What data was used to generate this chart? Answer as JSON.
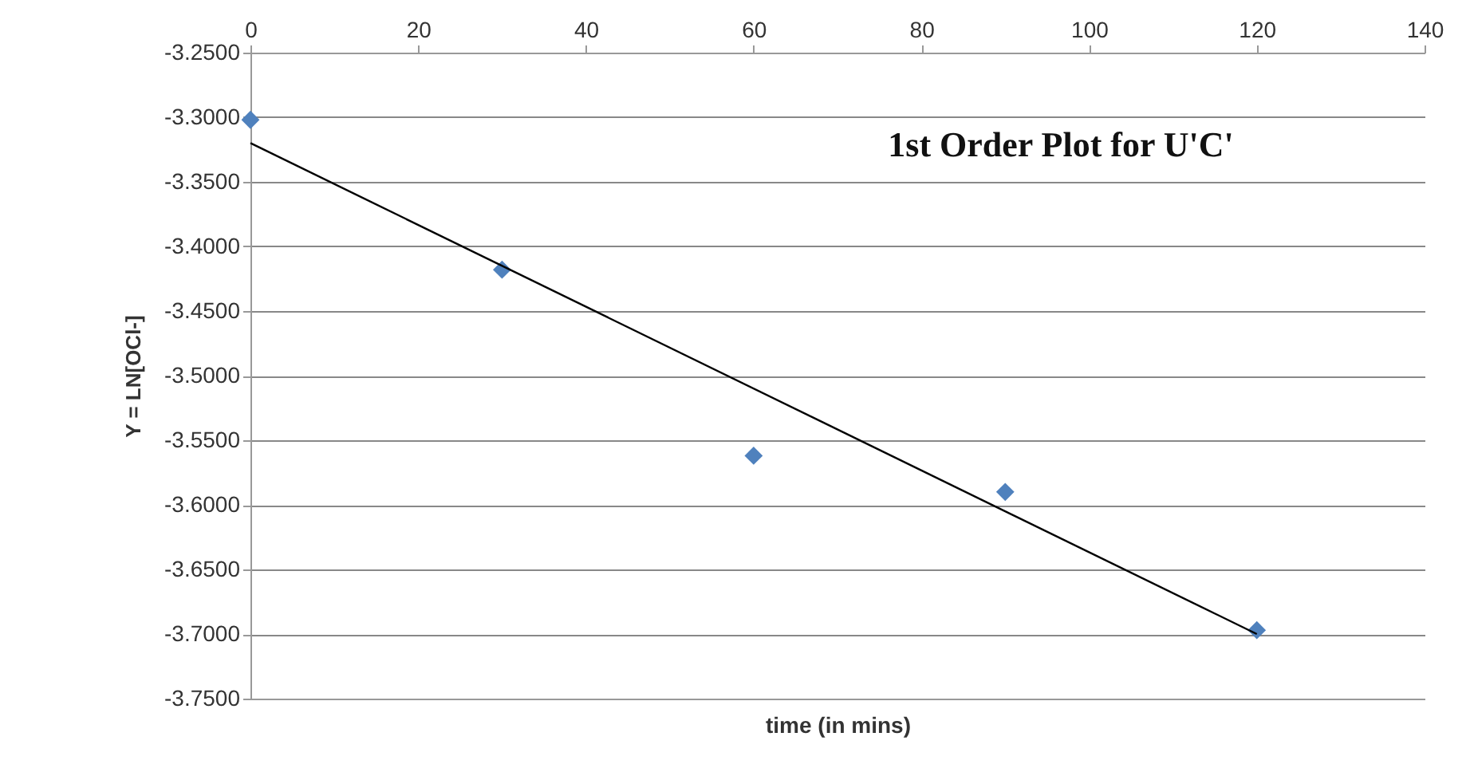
{
  "chart_data": {
    "type": "scatter",
    "title": "1st Order Plot for U'C'",
    "xlabel": "time (in mins)",
    "ylabel": "Y = LN[OCl-]",
    "x": [
      0,
      30,
      60,
      90,
      120
    ],
    "series": [
      {
        "color": "#4f81bd",
        "values": [
          -3.302,
          -3.418,
          -3.562,
          -3.59,
          -3.697
        ],
        "marker": "diamond"
      },
      {
        "type": "line",
        "color": "#000000",
        "x": [
          0,
          120
        ],
        "values": [
          -3.32,
          -3.7
        ],
        "marker": "none"
      }
    ],
    "xlim": [
      0,
      140
    ],
    "xticks": [
      0,
      20,
      40,
      60,
      80,
      100,
      120,
      140
    ],
    "ylim": [
      -3.75,
      -3.25
    ],
    "yticks": [
      {
        "value": -3.25,
        "label": "-3.2500"
      },
      {
        "value": -3.3,
        "label": "-3.3000"
      },
      {
        "value": -3.35,
        "label": "-3.3500"
      },
      {
        "value": -3.4,
        "label": "-3.4000"
      },
      {
        "value": -3.45,
        "label": "-3.4500"
      },
      {
        "value": -3.5,
        "label": "-3.5000"
      },
      {
        "value": -3.55,
        "label": "-3.5500"
      },
      {
        "value": -3.6,
        "label": "-3.6000"
      },
      {
        "value": -3.65,
        "label": "-3.6500"
      },
      {
        "value": -3.7,
        "label": "-3.7000"
      },
      {
        "value": -3.75,
        "label": "-3.7500"
      }
    ],
    "grid": "y"
  }
}
